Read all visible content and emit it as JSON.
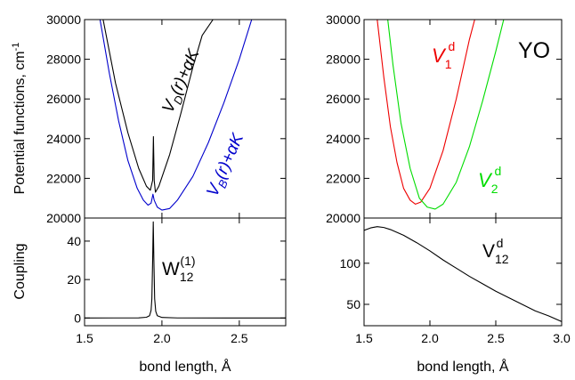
{
  "chart_data": [
    {
      "type": "line",
      "panel": "top-left",
      "ylabel": "Potential functions, cm",
      "ylabel_sup": "-1",
      "xlim": [
        1.5,
        2.8
      ],
      "ylim": [
        20000,
        30000
      ],
      "yticks": [
        20000,
        22000,
        24000,
        26000,
        28000,
        30000
      ],
      "ytick_labels": [
        "20000",
        "22000",
        "24000",
        "26000",
        "28000",
        "30000"
      ],
      "series": [
        {
          "label": "VD(r)+αK",
          "color": "#000000",
          "points": [
            [
              1.62,
              30000
            ],
            [
              1.7,
              26800
            ],
            [
              1.78,
              24300
            ],
            [
              1.85,
              22500
            ],
            [
              1.9,
              21600
            ],
            [
              1.925,
              21400
            ],
            [
              1.94,
              21900
            ],
            [
              1.945,
              24100
            ],
            [
              1.95,
              21900
            ],
            [
              1.958,
              21300
            ],
            [
              1.98,
              21600
            ],
            [
              2.05,
              23200
            ],
            [
              2.12,
              25200
            ],
            [
              2.2,
              27600
            ],
            [
              2.26,
              29200
            ],
            [
              2.33,
              30000
            ]
          ]
        },
        {
          "label": "VB(r)+αK",
          "color": "#0000cc",
          "points": [
            [
              1.6,
              30000
            ],
            [
              1.66,
              27300
            ],
            [
              1.72,
              24900
            ],
            [
              1.78,
              22900
            ],
            [
              1.84,
              21500
            ],
            [
              1.88,
              20900
            ],
            [
              1.91,
              20650
            ],
            [
              1.93,
              20750
            ],
            [
              1.942,
              21200
            ],
            [
              1.95,
              20900
            ],
            [
              1.97,
              20550
            ],
            [
              2.0,
              20400
            ],
            [
              2.05,
              20480
            ],
            [
              2.1,
              20900
            ],
            [
              2.2,
              22100
            ],
            [
              2.3,
              23800
            ],
            [
              2.4,
              25800
            ],
            [
              2.5,
              28000
            ],
            [
              2.58,
              30000
            ]
          ]
        }
      ],
      "annotations": [
        {
          "base": "V",
          "sub": "D",
          "rest": "(r)+αK",
          "color": "#000000"
        },
        {
          "base": "V",
          "sub": "B",
          "rest": "(r)+αK",
          "color": "#0000cc"
        }
      ]
    },
    {
      "type": "line",
      "panel": "bottom-left",
      "xlabel": "bond length, Å",
      "ylabel": "Coupling",
      "xlim": [
        1.5,
        2.8
      ],
      "ylim": [
        -4,
        52
      ],
      "xticks": [
        1.5,
        2.0,
        2.5
      ],
      "xtick_labels": [
        "1.5",
        "2.0",
        "2.5"
      ],
      "yticks": [
        0,
        20,
        40
      ],
      "ytick_labels": [
        "0",
        "20",
        "40"
      ],
      "series": [
        {
          "label": "W12(1)",
          "color": "#000000",
          "points": [
            [
              1.5,
              0.0
            ],
            [
              1.85,
              0.1
            ],
            [
              1.9,
              0.4
            ],
            [
              1.92,
              1.2
            ],
            [
              1.93,
              4.0
            ],
            [
              1.935,
              10.0
            ],
            [
              1.94,
              30.0
            ],
            [
              1.944,
              50.0
            ],
            [
              1.948,
              30.0
            ],
            [
              1.953,
              10.0
            ],
            [
              1.96,
              3.5
            ],
            [
              1.97,
              1.2
            ],
            [
              2.0,
              0.3
            ],
            [
              2.1,
              0.05
            ],
            [
              2.8,
              0.0
            ]
          ]
        }
      ],
      "annotations": [
        {
          "base": "W",
          "sub": "12",
          "sup": "(1)",
          "color": "#000000"
        }
      ]
    },
    {
      "type": "line",
      "panel": "top-right",
      "title": "YO",
      "xlim": [
        1.5,
        3.0
      ],
      "ylim": [
        20000,
        30000
      ],
      "yticks": [
        20000,
        22000,
        24000,
        26000,
        28000,
        30000
      ],
      "ytick_labels": [
        "20000",
        "22000",
        "24000",
        "26000",
        "28000",
        "30000"
      ],
      "series": [
        {
          "label": "V1d",
          "color": "#ee0000",
          "points": [
            [
              1.6,
              30000
            ],
            [
              1.65,
              27100
            ],
            [
              1.7,
              24600
            ],
            [
              1.75,
              22800
            ],
            [
              1.8,
              21500
            ],
            [
              1.85,
              20900
            ],
            [
              1.89,
              20700
            ],
            [
              1.93,
              20800
            ],
            [
              2.0,
              21500
            ],
            [
              2.1,
              23400
            ],
            [
              2.2,
              26000
            ],
            [
              2.3,
              29000
            ],
            [
              2.34,
              30000
            ]
          ]
        },
        {
          "label": "V2d",
          "color": "#00dd00",
          "points": [
            [
              1.68,
              30000
            ],
            [
              1.72,
              27700
            ],
            [
              1.78,
              24800
            ],
            [
              1.85,
              22500
            ],
            [
              1.92,
              21000
            ],
            [
              1.98,
              20550
            ],
            [
              2.04,
              20450
            ],
            [
              2.1,
              20700
            ],
            [
              2.2,
              21800
            ],
            [
              2.3,
              23600
            ],
            [
              2.4,
              25900
            ],
            [
              2.5,
              28400
            ],
            [
              2.56,
              30000
            ]
          ]
        }
      ],
      "annotations": [
        {
          "base": "V",
          "sub": "1",
          "sup": "d",
          "color": "#ee0000"
        },
        {
          "base": "V",
          "sub": "2",
          "sup": "d",
          "color": "#00dd00"
        }
      ]
    },
    {
      "type": "line",
      "panel": "bottom-right",
      "xlabel": "bond length, Å",
      "xlim": [
        1.5,
        3.0
      ],
      "ylim": [
        24,
        155
      ],
      "xticks": [
        1.5,
        2.0,
        2.5,
        3.0
      ],
      "xtick_labels": [
        "1.5",
        "2.0",
        "2.5",
        "3.0"
      ],
      "yticks": [
        50,
        100
      ],
      "ytick_labels": [
        "50",
        "100"
      ],
      "series": [
        {
          "label": "V12d",
          "color": "#000000",
          "points": [
            [
              1.5,
              140
            ],
            [
              1.55,
              143
            ],
            [
              1.6,
              144.5
            ],
            [
              1.65,
              143.5
            ],
            [
              1.7,
              141
            ],
            [
              1.8,
              134
            ],
            [
              1.9,
              125
            ],
            [
              2.0,
              115
            ],
            [
              2.1,
              104
            ],
            [
              2.2,
              94
            ],
            [
              2.3,
              84
            ],
            [
              2.4,
              75
            ],
            [
              2.5,
              66
            ],
            [
              2.6,
              58
            ],
            [
              2.7,
              50
            ],
            [
              2.8,
              42
            ],
            [
              2.9,
              36
            ],
            [
              3.0,
              29
            ]
          ]
        }
      ],
      "annotations": [
        {
          "base": "V",
          "sub": "12",
          "sup": "d",
          "color": "#000000"
        }
      ]
    }
  ]
}
